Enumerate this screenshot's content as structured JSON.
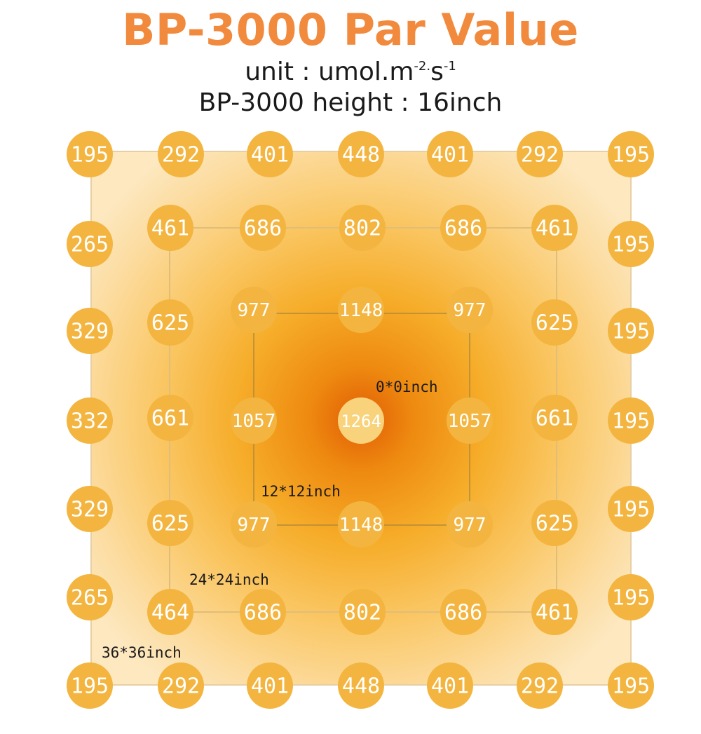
{
  "title": "BP-3000 Par Value",
  "subtitle": {
    "unit_prefix": "unit : umol.m",
    "unit_exp1": "-2.",
    "unit_mid": "s",
    "unit_exp2": "-1",
    "height_line": "BP-3000 height : 16inch"
  },
  "colors": {
    "title": "#f28a3d",
    "circle": "#f3b53f",
    "center_circle": "#ffffff",
    "hotspot": "#e4650a"
  },
  "chart_data": {
    "type": "heatmap",
    "title": "BP-3000 Par Value",
    "unit": "umol.m-2.s-1",
    "height": "16inch",
    "zones": [
      {
        "label": "0*0inch"
      },
      {
        "label": "12*12inch"
      },
      {
        "label": "24*24inch"
      },
      {
        "label": "36*36inch"
      }
    ],
    "outer_ring": [
      {
        "row": 0,
        "col": 0,
        "value": 195
      },
      {
        "row": 0,
        "col": 1,
        "value": 292
      },
      {
        "row": 0,
        "col": 2,
        "value": 401
      },
      {
        "row": 0,
        "col": 3,
        "value": 448
      },
      {
        "row": 0,
        "col": 4,
        "value": 401
      },
      {
        "row": 0,
        "col": 5,
        "value": 292
      },
      {
        "row": 0,
        "col": 6,
        "value": 195
      },
      {
        "row": 1,
        "col": 0,
        "value": 265
      },
      {
        "row": 2,
        "col": 0,
        "value": 329
      },
      {
        "row": 3,
        "col": 0,
        "value": 332
      },
      {
        "row": 4,
        "col": 0,
        "value": 329
      },
      {
        "row": 5,
        "col": 0,
        "value": 265
      },
      {
        "row": 1,
        "col": 6,
        "value": 195
      },
      {
        "row": 2,
        "col": 6,
        "value": 195
      },
      {
        "row": 3,
        "col": 6,
        "value": 195
      },
      {
        "row": 4,
        "col": 6,
        "value": 195
      },
      {
        "row": 5,
        "col": 6,
        "value": 195
      },
      {
        "row": 6,
        "col": 0,
        "value": 195
      },
      {
        "row": 6,
        "col": 1,
        "value": 292
      },
      {
        "row": 6,
        "col": 2,
        "value": 401
      },
      {
        "row": 6,
        "col": 3,
        "value": 448
      },
      {
        "row": 6,
        "col": 4,
        "value": 401
      },
      {
        "row": 6,
        "col": 5,
        "value": 292
      },
      {
        "row": 6,
        "col": 6,
        "value": 195
      }
    ],
    "middle_ring": [
      {
        "row": 1,
        "col": 1,
        "value": 461
      },
      {
        "row": 1,
        "col": 2,
        "value": 686
      },
      {
        "row": 1,
        "col": 3,
        "value": 802
      },
      {
        "row": 1,
        "col": 4,
        "value": 686
      },
      {
        "row": 1,
        "col": 5,
        "value": 461
      },
      {
        "row": 2,
        "col": 1,
        "value": 625
      },
      {
        "row": 3,
        "col": 1,
        "value": 661
      },
      {
        "row": 4,
        "col": 1,
        "value": 625
      },
      {
        "row": 2,
        "col": 5,
        "value": 625
      },
      {
        "row": 3,
        "col": 5,
        "value": 661
      },
      {
        "row": 4,
        "col": 5,
        "value": 625
      },
      {
        "row": 5,
        "col": 1,
        "value": 464
      },
      {
        "row": 5,
        "col": 2,
        "value": 686
      },
      {
        "row": 5,
        "col": 3,
        "value": 802
      },
      {
        "row": 5,
        "col": 4,
        "value": 686
      },
      {
        "row": 5,
        "col": 5,
        "value": 461
      }
    ],
    "inner_ring": [
      {
        "row": 2,
        "col": 2,
        "value": 977
      },
      {
        "row": 2,
        "col": 3,
        "value": 1148
      },
      {
        "row": 2,
        "col": 4,
        "value": 977
      },
      {
        "row": 3,
        "col": 2,
        "value": 1057
      },
      {
        "row": 3,
        "col": 4,
        "value": 1057
      },
      {
        "row": 4,
        "col": 2,
        "value": 977
      },
      {
        "row": 4,
        "col": 3,
        "value": 1148
      },
      {
        "row": 4,
        "col": 4,
        "value": 977
      }
    ],
    "center": {
      "row": 3,
      "col": 3,
      "value": 1264
    }
  }
}
